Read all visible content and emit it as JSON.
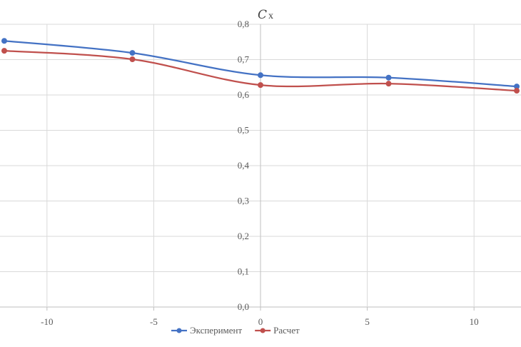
{
  "chart_data": {
    "type": "line",
    "x": [
      -12,
      -6,
      0,
      6,
      12
    ],
    "series": [
      {
        "name": "Эксперимент",
        "values": [
          0.753,
          0.719,
          0.656,
          0.649,
          0.624
        ],
        "color": "#4472C4"
      },
      {
        "name": "Расчет",
        "values": [
          0.725,
          0.701,
          0.628,
          0.632,
          0.612
        ],
        "color": "#C0504D"
      }
    ],
    "xlim": [
      -12.2,
      12.2
    ],
    "ylim": [
      0,
      0.8
    ],
    "xticks": [
      -10,
      -5,
      0,
      5,
      10
    ],
    "xtick_labels": [
      "-10",
      "-5",
      "0",
      "5",
      "10"
    ],
    "yticks": [
      0,
      0.1,
      0.2,
      0.3,
      0.4,
      0.5,
      0.6,
      0.7,
      0.8
    ],
    "ytick_labels": [
      "0,0",
      "0,1",
      "0,2",
      "0,3",
      "0,4",
      "0,5",
      "0,6",
      "0,7",
      "0,8"
    ],
    "ylabel": {
      "main": "C",
      "sub": "x"
    },
    "grid": true,
    "legend": "bottom",
    "colors": {
      "grid": "#D9D9D9",
      "axis": "#BFBFBF",
      "text": "#595959"
    }
  }
}
